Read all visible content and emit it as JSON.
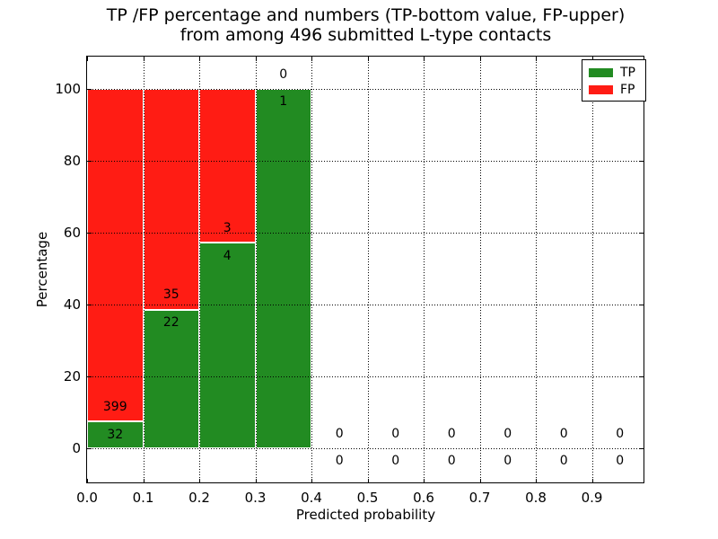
{
  "chart_data": {
    "type": "bar",
    "stacked": true,
    "title_lines": [
      "TP /FP percentage and numbers (TP-bottom value, FP-upper)",
      "from among 496 submitted L-type contacts"
    ],
    "xlabel": "Predicted probability",
    "ylabel": "Percentage",
    "xlim": [
      0.0,
      1.0
    ],
    "ylim": [
      -10,
      110
    ],
    "grid": true,
    "grid_style": "dotted",
    "bin_width": 0.1,
    "bin_starts": [
      0.0,
      0.1,
      0.2,
      0.3,
      0.4,
      0.5,
      0.6,
      0.7,
      0.8,
      0.9
    ],
    "x_tick_values": [
      0.0,
      0.1,
      0.2,
      0.3,
      0.4,
      0.5,
      0.6,
      0.7,
      0.8,
      0.9
    ],
    "x_ticks": [
      "0.0",
      "0.1",
      "0.2",
      "0.3",
      "0.4",
      "0.5",
      "0.6",
      "0.7",
      "0.8",
      "0.9"
    ],
    "y_tick_values": [
      0,
      20,
      40,
      60,
      80,
      100
    ],
    "y_ticks": [
      "0",
      "20",
      "40",
      "60",
      "80",
      "100"
    ],
    "series": [
      {
        "name": "TP",
        "color": "#228b22",
        "counts": [
          32,
          22,
          4,
          1,
          0,
          0,
          0,
          0,
          0,
          0
        ],
        "percent": [
          7.42,
          38.6,
          57.14,
          100.0,
          0,
          0,
          0,
          0,
          0,
          0
        ]
      },
      {
        "name": "FP",
        "color": "#ff1c14",
        "counts": [
          399,
          35,
          3,
          0,
          0,
          0,
          0,
          0,
          0,
          0
        ],
        "percent": [
          92.58,
          61.4,
          42.86,
          0,
          0,
          0,
          0,
          0,
          0,
          0
        ]
      }
    ],
    "legend": {
      "position": "upper right",
      "entries": [
        {
          "label": "TP",
          "color": "#228b22"
        },
        {
          "label": "FP",
          "color": "#ff1c14"
        }
      ]
    }
  }
}
